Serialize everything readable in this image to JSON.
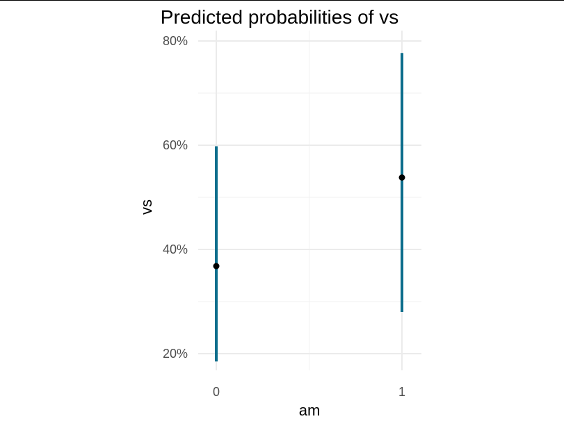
{
  "chart_data": {
    "type": "errorbar",
    "title": "Predicted probabilities of vs",
    "xlabel": "am",
    "ylabel": "vs",
    "categories": [
      "0",
      "1"
    ],
    "points": [
      {
        "x": "0",
        "estimate": 0.368,
        "lower": 0.185,
        "upper": 0.598
      },
      {
        "x": "1",
        "estimate": 0.538,
        "lower": 0.28,
        "upper": 0.777
      }
    ],
    "y_ticks": [
      0.2,
      0.4,
      0.6,
      0.8
    ],
    "y_tick_labels": [
      "20%",
      "40%",
      "60%",
      "80%"
    ],
    "ylim": [
      0.16,
      0.8
    ],
    "grid": true,
    "colors": {
      "interval": "#0d6e8c",
      "point": "#000000",
      "grid_major": "#ebebeb",
      "grid_minor": "#f2f2f2"
    }
  }
}
